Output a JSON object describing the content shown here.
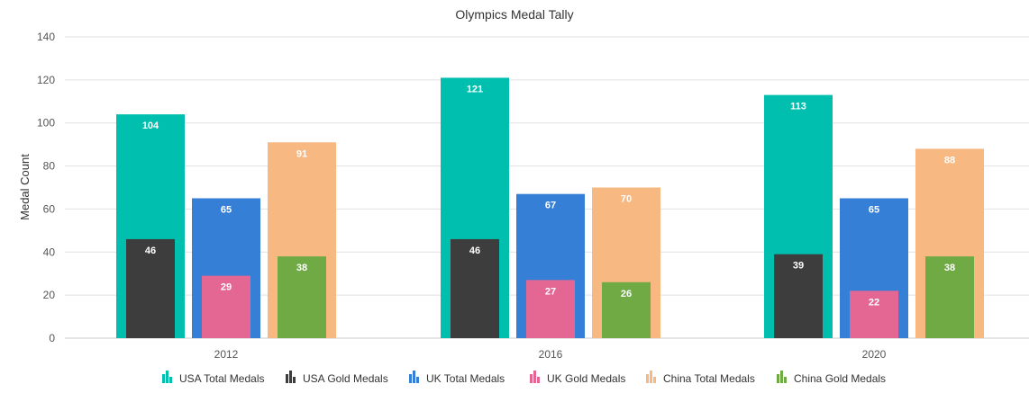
{
  "chart_data": {
    "type": "bar",
    "title": "Olympics Medal Tally",
    "xlabel": "",
    "ylabel": "Medal Count",
    "ylim": [
      0,
      140
    ],
    "yticks": [
      0,
      20,
      40,
      60,
      80,
      100,
      120,
      140
    ],
    "grid": true,
    "legend_position": "bottom",
    "categories": [
      "2012",
      "2016",
      "2020"
    ],
    "series": [
      {
        "name": "USA Total Medals",
        "color": "#00BFAE",
        "values": [
          104,
          121,
          113
        ]
      },
      {
        "name": "USA Gold Medals",
        "color": "#3D3D3D",
        "values": [
          46,
          46,
          39
        ]
      },
      {
        "name": "UK Total Medals",
        "color": "#367FD6",
        "values": [
          65,
          67,
          65
        ]
      },
      {
        "name": "UK Gold Medals",
        "color": "#E46693",
        "values": [
          29,
          27,
          22
        ]
      },
      {
        "name": "China Total Medals",
        "color": "#F7B882",
        "values": [
          91,
          70,
          88
        ]
      },
      {
        "name": "China Gold Medals",
        "color": "#6FAA45",
        "values": [
          38,
          26,
          38
        ]
      }
    ]
  }
}
